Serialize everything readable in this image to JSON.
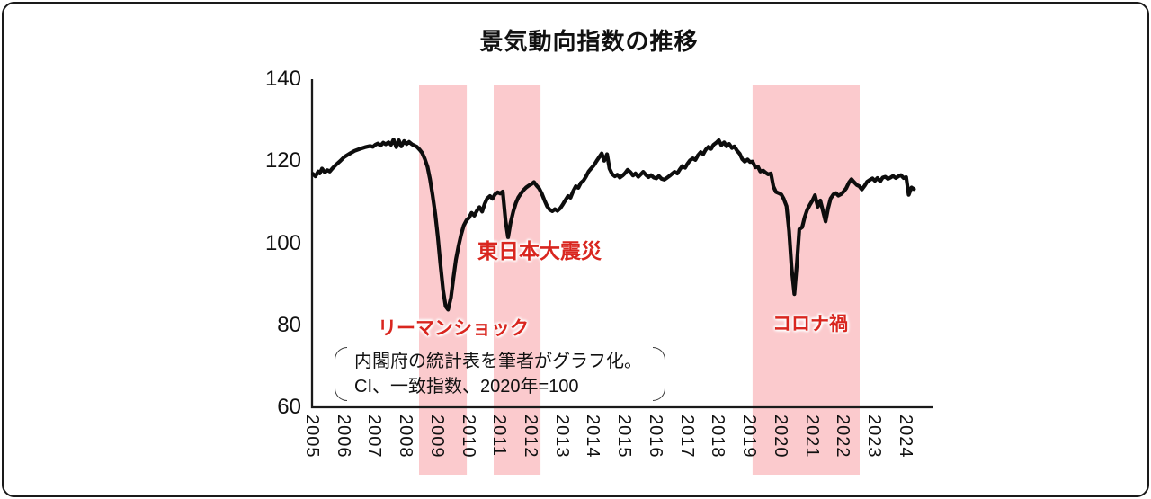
{
  "title": "景気動向指数の推移",
  "colors": {
    "band": "#FBCACD",
    "line": "#0d0d0d",
    "axis": "#1a1a1a",
    "annotation_red": "#D9261F",
    "text": "#111111"
  },
  "axes": {
    "y_ticks": [
      140,
      120,
      100,
      80,
      60
    ],
    "x_ticks": [
      2005,
      2006,
      2007,
      2008,
      2009,
      2010,
      2011,
      2012,
      2013,
      2014,
      2015,
      2016,
      2017,
      2018,
      2019,
      2020,
      2021,
      2022,
      2023,
      2024
    ]
  },
  "annotations": [
    {
      "label": "リーマンショック"
    },
    {
      "label": "東日本大震災"
    },
    {
      "label": "コロナ禍"
    }
  ],
  "note": {
    "line1": "内閣府の統計表を筆者がグラフ化。",
    "line2": "CI、一致指数、2020年=100"
  },
  "chart_data": {
    "type": "line",
    "title": "景気動向指数の推移",
    "xlabel": "",
    "ylabel": "",
    "ylim": [
      60,
      140
    ],
    "xlim": [
      2005,
      2024.9
    ],
    "grid": false,
    "legend": "none",
    "bands": [
      {
        "label": "リーマンショック",
        "x0": 2008.4,
        "x1": 2009.93
      },
      {
        "label": "東日本大震災",
        "x0": 2010.79,
        "x1": 2012.29
      },
      {
        "label": "コロナ禍",
        "x0": 2019.08,
        "x1": 2022.51
      }
    ],
    "series": [
      {
        "name": "CI一致指数 (2020年=100)",
        "points": [
          [
            2005.0,
            116.9
          ],
          [
            2005.08,
            116.3
          ],
          [
            2005.17,
            117.5
          ],
          [
            2005.22,
            117.0
          ],
          [
            2005.29,
            118.2
          ],
          [
            2005.38,
            117.3
          ],
          [
            2005.46,
            117.8
          ],
          [
            2005.54,
            117.5
          ],
          [
            2005.63,
            118.3
          ],
          [
            2005.75,
            119.2
          ],
          [
            2005.88,
            120.1
          ],
          [
            2006.0,
            121.0
          ],
          [
            2006.17,
            121.8
          ],
          [
            2006.33,
            122.5
          ],
          [
            2006.5,
            123.0
          ],
          [
            2006.67,
            123.4
          ],
          [
            2006.83,
            123.7
          ],
          [
            2006.92,
            123.5
          ],
          [
            2007.0,
            124.0
          ],
          [
            2007.08,
            124.3
          ],
          [
            2007.17,
            123.8
          ],
          [
            2007.25,
            124.5
          ],
          [
            2007.33,
            124.1
          ],
          [
            2007.42,
            124.6
          ],
          [
            2007.5,
            124.0
          ],
          [
            2007.58,
            125.3
          ],
          [
            2007.67,
            123.4
          ],
          [
            2007.75,
            125.1
          ],
          [
            2007.83,
            123.6
          ],
          [
            2007.92,
            124.9
          ],
          [
            2008.0,
            124.2
          ],
          [
            2008.08,
            124.7
          ],
          [
            2008.17,
            124.1
          ],
          [
            2008.25,
            123.8
          ],
          [
            2008.33,
            123.5
          ],
          [
            2008.42,
            122.8
          ],
          [
            2008.5,
            122.0
          ],
          [
            2008.58,
            120.6
          ],
          [
            2008.67,
            118.6
          ],
          [
            2008.75,
            115.6
          ],
          [
            2008.83,
            111.8
          ],
          [
            2008.92,
            107.0
          ],
          [
            2009.0,
            101.5
          ],
          [
            2009.08,
            95.0
          ],
          [
            2009.17,
            88.5
          ],
          [
            2009.25,
            84.6
          ],
          [
            2009.33,
            83.8
          ],
          [
            2009.42,
            86.8
          ],
          [
            2009.5,
            91.5
          ],
          [
            2009.58,
            96.0
          ],
          [
            2009.67,
            99.5
          ],
          [
            2009.75,
            102.2
          ],
          [
            2009.83,
            104.3
          ],
          [
            2009.92,
            105.6
          ],
          [
            2010.0,
            106.2
          ],
          [
            2010.08,
            107.4
          ],
          [
            2010.17,
            106.7
          ],
          [
            2010.25,
            107.9
          ],
          [
            2010.33,
            108.8
          ],
          [
            2010.42,
            107.7
          ],
          [
            2010.5,
            109.6
          ],
          [
            2010.58,
            110.9
          ],
          [
            2010.67,
            111.5
          ],
          [
            2010.75,
            110.8
          ],
          [
            2010.83,
            111.9
          ],
          [
            2010.92,
            112.4
          ],
          [
            2011.0,
            112.1
          ],
          [
            2011.08,
            112.6
          ],
          [
            2011.17,
            105.5
          ],
          [
            2011.25,
            101.4
          ],
          [
            2011.33,
            105.0
          ],
          [
            2011.42,
            107.8
          ],
          [
            2011.5,
            109.8
          ],
          [
            2011.58,
            111.2
          ],
          [
            2011.67,
            112.2
          ],
          [
            2011.75,
            113.0
          ],
          [
            2011.83,
            113.6
          ],
          [
            2011.92,
            114.1
          ],
          [
            2012.0,
            114.4
          ],
          [
            2012.08,
            114.9
          ],
          [
            2012.17,
            114.0
          ],
          [
            2012.25,
            113.3
          ],
          [
            2012.33,
            112.1
          ],
          [
            2012.42,
            110.4
          ],
          [
            2012.5,
            109.0
          ],
          [
            2012.58,
            108.2
          ],
          [
            2012.67,
            107.8
          ],
          [
            2012.75,
            108.3
          ],
          [
            2012.83,
            107.9
          ],
          [
            2012.92,
            108.5
          ],
          [
            2013.0,
            109.4
          ],
          [
            2013.08,
            110.4
          ],
          [
            2013.17,
            111.5
          ],
          [
            2013.25,
            111.1
          ],
          [
            2013.33,
            112.6
          ],
          [
            2013.42,
            113.9
          ],
          [
            2013.5,
            113.5
          ],
          [
            2013.58,
            114.7
          ],
          [
            2013.67,
            115.3
          ],
          [
            2013.75,
            116.3
          ],
          [
            2013.83,
            117.5
          ],
          [
            2013.92,
            118.3
          ],
          [
            2014.0,
            119.0
          ],
          [
            2014.08,
            120.0
          ],
          [
            2014.17,
            121.0
          ],
          [
            2014.25,
            121.9
          ],
          [
            2014.33,
            120.1
          ],
          [
            2014.42,
            121.7
          ],
          [
            2014.5,
            118.2
          ],
          [
            2014.58,
            116.9
          ],
          [
            2014.67,
            116.3
          ],
          [
            2014.75,
            116.7
          ],
          [
            2014.83,
            116.0
          ],
          [
            2014.92,
            116.5
          ],
          [
            2015.0,
            117.1
          ],
          [
            2015.08,
            117.9
          ],
          [
            2015.17,
            117.3
          ],
          [
            2015.25,
            116.5
          ],
          [
            2015.33,
            117.0
          ],
          [
            2015.42,
            116.2
          ],
          [
            2015.5,
            116.8
          ],
          [
            2015.58,
            117.4
          ],
          [
            2015.67,
            116.6
          ],
          [
            2015.75,
            116.1
          ],
          [
            2015.83,
            116.6
          ],
          [
            2015.92,
            116.0
          ],
          [
            2016.0,
            115.8
          ],
          [
            2016.08,
            116.4
          ],
          [
            2016.17,
            115.7
          ],
          [
            2016.25,
            115.5
          ],
          [
            2016.33,
            115.9
          ],
          [
            2016.42,
            116.4
          ],
          [
            2016.5,
            116.9
          ],
          [
            2016.58,
            117.4
          ],
          [
            2016.67,
            117.0
          ],
          [
            2016.75,
            118.0
          ],
          [
            2016.83,
            118.8
          ],
          [
            2016.92,
            118.4
          ],
          [
            2017.0,
            119.4
          ],
          [
            2017.08,
            120.2
          ],
          [
            2017.17,
            120.7
          ],
          [
            2017.25,
            120.3
          ],
          [
            2017.33,
            121.4
          ],
          [
            2017.42,
            122.2
          ],
          [
            2017.5,
            121.7
          ],
          [
            2017.58,
            122.8
          ],
          [
            2017.67,
            123.5
          ],
          [
            2017.75,
            123.0
          ],
          [
            2017.83,
            124.0
          ],
          [
            2017.92,
            124.5
          ],
          [
            2018.0,
            125.1
          ],
          [
            2018.08,
            123.9
          ],
          [
            2018.17,
            124.6
          ],
          [
            2018.25,
            123.6
          ],
          [
            2018.33,
            124.2
          ],
          [
            2018.42,
            123.2
          ],
          [
            2018.5,
            123.6
          ],
          [
            2018.58,
            122.6
          ],
          [
            2018.67,
            121.8
          ],
          [
            2018.75,
            120.5
          ],
          [
            2018.83,
            119.9
          ],
          [
            2018.92,
            120.4
          ],
          [
            2019.0,
            119.8
          ],
          [
            2019.08,
            119.9
          ],
          [
            2019.17,
            118.5
          ],
          [
            2019.25,
            118.7
          ],
          [
            2019.33,
            117.5
          ],
          [
            2019.42,
            117.7
          ],
          [
            2019.5,
            117.2
          ],
          [
            2019.58,
            116.8
          ],
          [
            2019.67,
            117.0
          ],
          [
            2019.75,
            113.8
          ],
          [
            2019.83,
            112.5
          ],
          [
            2019.92,
            112.2
          ],
          [
            2020.0,
            111.9
          ],
          [
            2020.08,
            110.8
          ],
          [
            2020.17,
            109.0
          ],
          [
            2020.25,
            103.0
          ],
          [
            2020.33,
            94.0
          ],
          [
            2020.42,
            87.6
          ],
          [
            2020.5,
            95.0
          ],
          [
            2020.58,
            103.4
          ],
          [
            2020.67,
            103.9
          ],
          [
            2020.75,
            106.3
          ],
          [
            2020.83,
            108.1
          ],
          [
            2020.92,
            109.4
          ],
          [
            2021.0,
            110.4
          ],
          [
            2021.08,
            111.7
          ],
          [
            2021.17,
            108.9
          ],
          [
            2021.25,
            110.4
          ],
          [
            2021.33,
            108.0
          ],
          [
            2021.42,
            105.3
          ],
          [
            2021.5,
            108.5
          ],
          [
            2021.58,
            110.9
          ],
          [
            2021.67,
            111.9
          ],
          [
            2021.75,
            112.2
          ],
          [
            2021.83,
            111.6
          ],
          [
            2021.92,
            112.0
          ],
          [
            2022.0,
            112.6
          ],
          [
            2022.08,
            113.4
          ],
          [
            2022.17,
            114.8
          ],
          [
            2022.25,
            115.6
          ],
          [
            2022.33,
            114.9
          ],
          [
            2022.42,
            114.2
          ],
          [
            2022.5,
            113.9
          ],
          [
            2022.58,
            113.1
          ],
          [
            2022.67,
            114.0
          ],
          [
            2022.75,
            115.0
          ],
          [
            2022.83,
            115.4
          ],
          [
            2022.92,
            115.8
          ],
          [
            2023.0,
            115.2
          ],
          [
            2023.08,
            115.9
          ],
          [
            2023.17,
            115.1
          ],
          [
            2023.25,
            116.0
          ],
          [
            2023.33,
            116.2
          ],
          [
            2023.42,
            115.7
          ],
          [
            2023.5,
            116.0
          ],
          [
            2023.58,
            116.4
          ],
          [
            2023.67,
            115.9
          ],
          [
            2023.75,
            116.3
          ],
          [
            2023.83,
            116.6
          ],
          [
            2023.92,
            115.9
          ],
          [
            2024.0,
            116.1
          ],
          [
            2024.08,
            111.8
          ],
          [
            2024.17,
            113.6
          ],
          [
            2024.25,
            113.2
          ]
        ]
      }
    ]
  }
}
